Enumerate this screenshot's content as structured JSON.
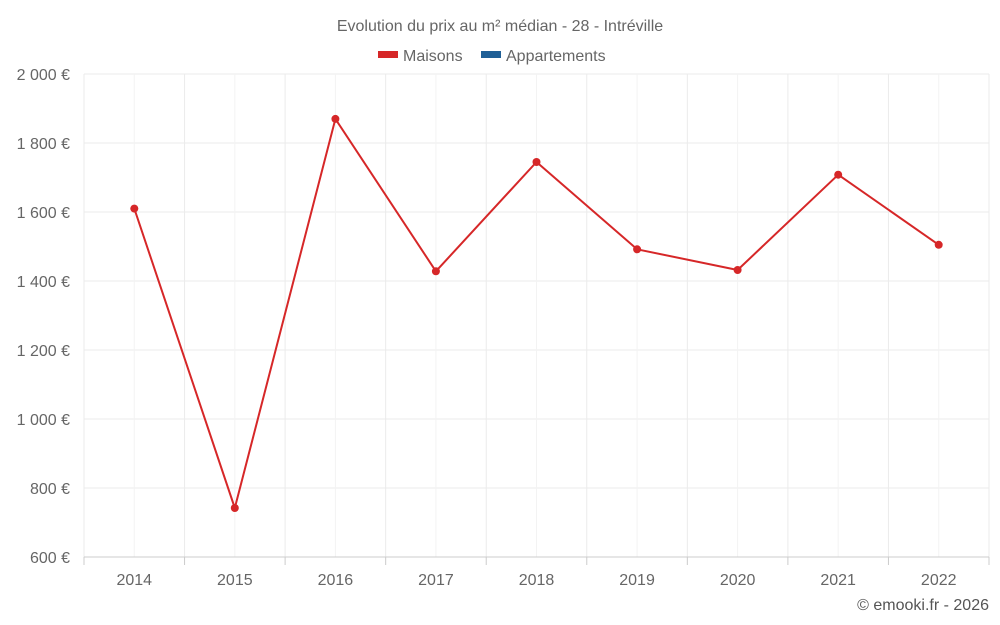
{
  "chart_data": {
    "type": "line",
    "title": "Evolution du prix au m² médian - 28 - Intréville",
    "categories": [
      "2014",
      "2015",
      "2016",
      "2017",
      "2018",
      "2019",
      "2020",
      "2021",
      "2022"
    ],
    "series": [
      {
        "name": "Maisons",
        "color": "#d62728",
        "values": [
          1610,
          742,
          1870,
          1428,
          1745,
          1492,
          1432,
          1708,
          1505
        ]
      },
      {
        "name": "Appartements",
        "color": "#1f5f96",
        "values": [
          null,
          null,
          null,
          null,
          null,
          null,
          null,
          null,
          null
        ]
      }
    ],
    "ylim": [
      600,
      2000
    ],
    "y_ticks": [
      600,
      800,
      1000,
      1200,
      1400,
      1600,
      1800,
      2000
    ],
    "y_tick_labels": [
      "600 €",
      "800 €",
      "1 000 €",
      "1 200 €",
      "1 400 €",
      "1 600 €",
      "1 800 €",
      "2 000 €"
    ],
    "legend_position": "top-center",
    "grid": true
  },
  "credit": "© emooki.fr - 2026"
}
